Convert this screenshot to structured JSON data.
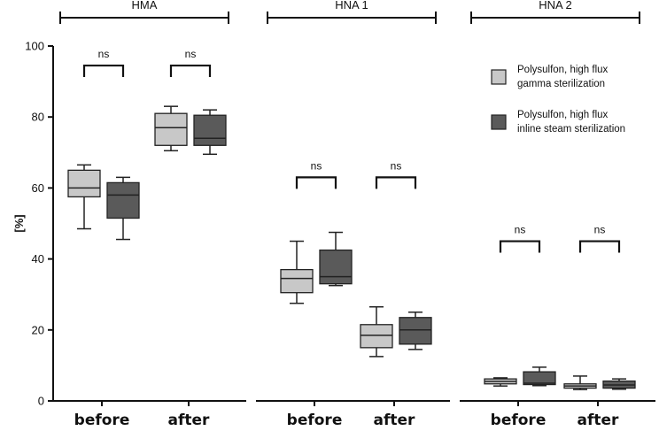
{
  "chart_data": {
    "type": "box",
    "ylabel": "[%]",
    "ylim": [
      0,
      100
    ],
    "yticks": [
      0,
      20,
      40,
      60,
      80,
      100
    ],
    "groups": [
      "HMA",
      "HNA 1",
      "HNA 2"
    ],
    "conditions": [
      "before",
      "after"
    ],
    "significance_label": "ns",
    "series": [
      {
        "name": "Polysulfon, high flux gamma sterilization",
        "color": "#c8c8c8",
        "boxes": [
          {
            "group": "HMA",
            "condition": "before",
            "min": 48.5,
            "q1": 57.5,
            "median": 60,
            "q3": 65,
            "max": 66.5
          },
          {
            "group": "HMA",
            "condition": "after",
            "min": 70.5,
            "q1": 72,
            "median": 77,
            "q3": 81,
            "max": 83
          },
          {
            "group": "HNA 1",
            "condition": "before",
            "min": 27.5,
            "q1": 30.5,
            "median": 34.5,
            "q3": 37,
            "max": 45
          },
          {
            "group": "HNA 1",
            "condition": "after",
            "min": 12.5,
            "q1": 15,
            "median": 18.5,
            "q3": 21.5,
            "max": 26.5
          },
          {
            "group": "HNA 2",
            "condition": "before",
            "min": 4.2,
            "q1": 4.8,
            "median": 5.5,
            "q3": 6.2,
            "max": 6.5
          },
          {
            "group": "HNA 2",
            "condition": "after",
            "min": 3.2,
            "q1": 3.6,
            "median": 4.2,
            "q3": 4.8,
            "max": 7
          }
        ]
      },
      {
        "name": "Polysulfon, high flux inline steam sterilization",
        "color": "#5a5a5a",
        "boxes": [
          {
            "group": "HMA",
            "condition": "before",
            "min": 45.5,
            "q1": 51.5,
            "median": 58,
            "q3": 61.5,
            "max": 63
          },
          {
            "group": "HMA",
            "condition": "after",
            "min": 69.5,
            "q1": 72,
            "median": 74,
            "q3": 80.5,
            "max": 82
          },
          {
            "group": "HNA 1",
            "condition": "before",
            "min": 32.5,
            "q1": 33,
            "median": 35,
            "q3": 42.5,
            "max": 47.5
          },
          {
            "group": "HNA 1",
            "condition": "after",
            "min": 14.5,
            "q1": 16,
            "median": 20,
            "q3": 23.5,
            "max": 25
          },
          {
            "group": "HNA 2",
            "condition": "before",
            "min": 4.3,
            "q1": 4.6,
            "median": 5.0,
            "q3": 8.2,
            "max": 9.5
          },
          {
            "group": "HNA 2",
            "condition": "after",
            "min": 3.3,
            "q1": 3.6,
            "median": 4.5,
            "q3": 5.6,
            "max": 6.2
          }
        ]
      }
    ],
    "comparisons": [
      {
        "group": "HMA",
        "condition": "before",
        "label": "ns",
        "bracket_y": 94.5
      },
      {
        "group": "HMA",
        "condition": "after",
        "label": "ns",
        "bracket_y": 94.5
      },
      {
        "group": "HNA 1",
        "condition": "before",
        "label": "ns",
        "bracket_y": 63
      },
      {
        "group": "HNA 1",
        "condition": "after",
        "label": "ns",
        "bracket_y": 63
      },
      {
        "group": "HNA 2",
        "condition": "before",
        "label": "ns",
        "bracket_y": 45
      },
      {
        "group": "HNA 2",
        "condition": "after",
        "label": "ns",
        "bracket_y": 45
      }
    ],
    "legend_position": "top-right",
    "grid": false
  }
}
